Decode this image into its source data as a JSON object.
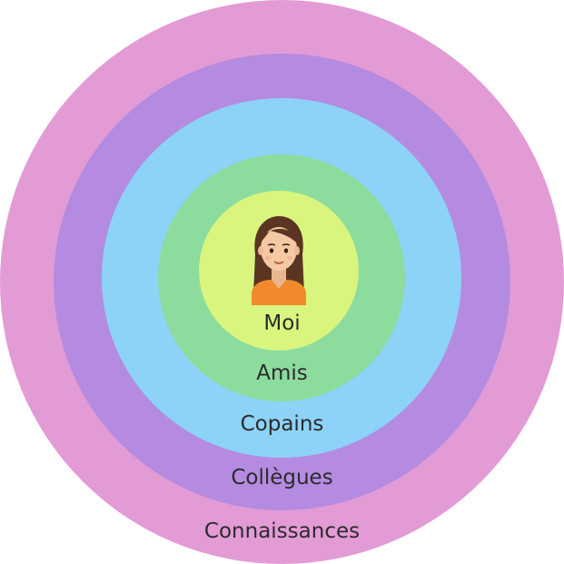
{
  "diagram": {
    "rings": [
      {
        "key": "connaissances",
        "label": "Connaissances",
        "color": "#e39bd6"
      },
      {
        "key": "collegues",
        "label": "Collègues",
        "color": "#b48be0"
      },
      {
        "key": "copains",
        "label": "Copains",
        "color": "#8cd3f7"
      },
      {
        "key": "amis",
        "label": "Amis",
        "color": "#8cdc9e"
      },
      {
        "key": "moi",
        "label": "Moi",
        "color": "#d9f57e"
      }
    ],
    "avatar": {
      "icon": "woman-avatar-icon",
      "hair_color": "#5a3522",
      "skin_color": "#f5c9a3",
      "shirt_color": "#f08a2c"
    }
  }
}
